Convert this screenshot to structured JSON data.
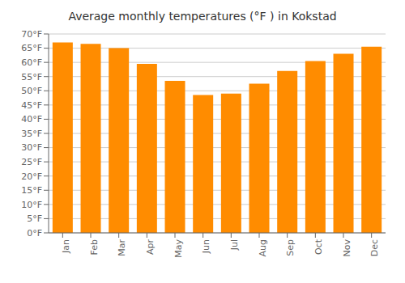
{
  "chart_data": {
    "type": "bar",
    "title": "Average monthly temperatures (°F ) in Kokstad",
    "categories": [
      "Jan",
      "Feb",
      "Mar",
      "Apr",
      "May",
      "Jun",
      "Jul",
      "Aug",
      "Sep",
      "Oct",
      "Nov",
      "Dec"
    ],
    "values": [
      67,
      66.5,
      65,
      59.5,
      53.5,
      48.5,
      49,
      52.5,
      57,
      60.5,
      63,
      65.5
    ],
    "color": "#FF8C00",
    "ylim": [
      0,
      70
    ],
    "yticks": [
      {
        "value": 0,
        "label": "0°F"
      },
      {
        "value": 5,
        "label": "5°F"
      },
      {
        "value": 10,
        "label": "10°F"
      },
      {
        "value": 15,
        "label": "15°F"
      },
      {
        "value": 20,
        "label": "20°F"
      },
      {
        "value": 25,
        "label": "25°F"
      },
      {
        "value": 30,
        "label": "30°F"
      },
      {
        "value": 35,
        "label": "35°F"
      },
      {
        "value": 40,
        "label": "40°F"
      },
      {
        "value": 45,
        "label": "45°F"
      },
      {
        "value": 50,
        "label": "50°F"
      },
      {
        "value": 55,
        "label": "55°F"
      },
      {
        "value": 60,
        "label": "60°F"
      },
      {
        "value": 65,
        "label": "65°F"
      },
      {
        "value": 70,
        "label": "70°F"
      }
    ],
    "grid": true
  }
}
